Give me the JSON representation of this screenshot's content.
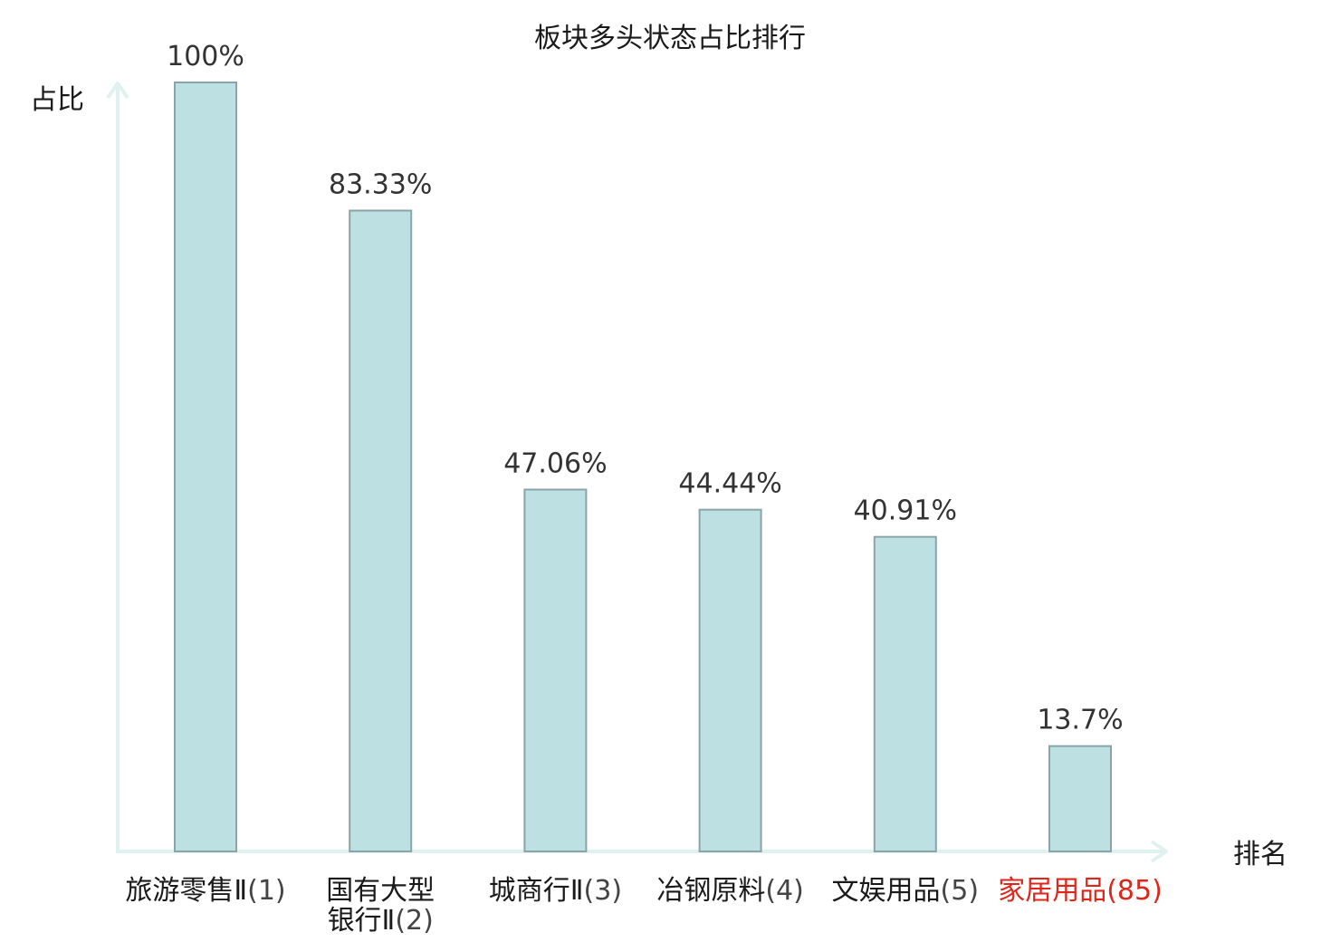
{
  "chart_data": {
    "type": "bar",
    "title": "板块多头状态占比排行",
    "ylabel": "占比",
    "xlabel": "排名",
    "ylim": [
      0,
      100
    ],
    "grid": false,
    "categories": [
      {
        "name": "旅游零售Ⅱ",
        "rank": "(1)",
        "highlight": false
      },
      {
        "name": "国有大型银行Ⅱ",
        "rank": "(2)",
        "highlight": false
      },
      {
        "name": "城商行Ⅱ",
        "rank": "(3)",
        "highlight": false
      },
      {
        "name": "冶钢原料",
        "rank": "(4)",
        "highlight": false
      },
      {
        "name": "文娱用品",
        "rank": "(5)",
        "highlight": false
      },
      {
        "name": "家居用品",
        "rank": "(85)",
        "highlight": true
      }
    ],
    "values": [
      100,
      83.33,
      47.06,
      44.44,
      40.91,
      13.7
    ],
    "value_labels": [
      "100%",
      "83.33%",
      "47.06%",
      "44.44%",
      "40.91%",
      "13.7%"
    ],
    "colors": {
      "bar_fill": "#bde0e3",
      "bar_stroke": "#8aa5aa",
      "axis": "#dff2ef",
      "highlight": "#e0251b"
    }
  }
}
